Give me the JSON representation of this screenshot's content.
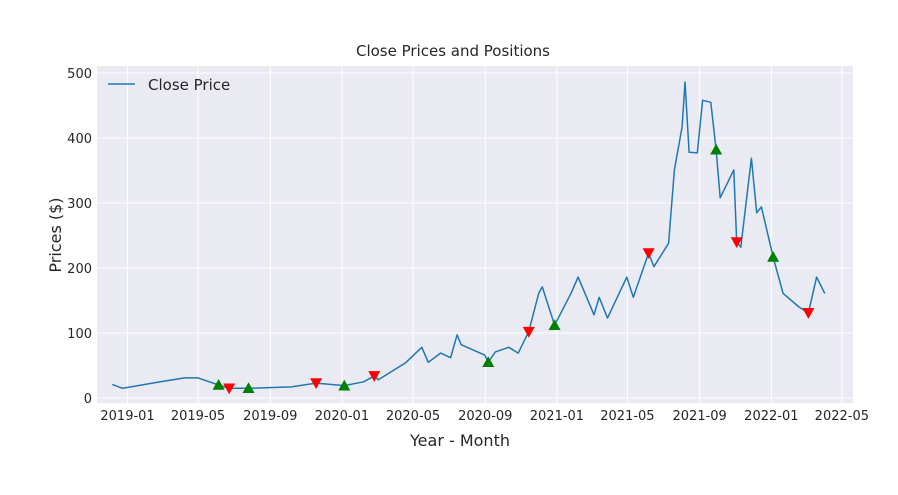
{
  "chart_data": {
    "type": "line",
    "title": "Close Prices and Positions",
    "xlabel": "Year - Month",
    "ylabel": "Prices ($)",
    "ylim": [
      0,
      500
    ],
    "yticks": [
      0,
      100,
      200,
      300,
      400,
      500
    ],
    "xlim": [
      "2018-11-10",
      "2022-05-20"
    ],
    "xticks": [
      "2019-01",
      "2019-05",
      "2019-09",
      "2020-01",
      "2020-05",
      "2020-09",
      "2021-01",
      "2021-05",
      "2021-09",
      "2022-01",
      "2022-05"
    ],
    "grid": true,
    "legend": {
      "placement": "top-left",
      "entries": [
        "Close Price"
      ]
    },
    "colors": {
      "line": "#1f77b4",
      "buy": "#008000",
      "sell": "#ff0000",
      "background": "#eaeaf2",
      "grid": "#ffffff"
    },
    "series": [
      {
        "name": "Close Price",
        "points": [
          [
            "2018-12-06",
            21
          ],
          [
            "2018-12-23",
            15
          ],
          [
            "2019-01-19",
            19
          ],
          [
            "2019-02-26",
            25
          ],
          [
            "2019-04-08",
            31
          ],
          [
            "2019-05-01",
            31
          ],
          [
            "2019-06-05",
            20
          ],
          [
            "2019-06-23",
            15
          ],
          [
            "2019-07-26",
            15
          ],
          [
            "2019-10-07",
            17
          ],
          [
            "2019-11-18",
            23
          ],
          [
            "2020-01-05",
            19
          ],
          [
            "2020-02-07",
            25
          ],
          [
            "2020-02-25",
            34
          ],
          [
            "2020-03-03",
            28
          ],
          [
            "2020-04-18",
            54
          ],
          [
            "2020-05-16",
            78
          ],
          [
            "2020-05-27",
            55
          ],
          [
            "2020-06-17",
            69
          ],
          [
            "2020-07-04",
            62
          ],
          [
            "2020-07-15",
            97
          ],
          [
            "2020-07-22",
            82
          ],
          [
            "2020-08-31",
            66
          ],
          [
            "2020-09-06",
            55
          ],
          [
            "2020-09-18",
            71
          ],
          [
            "2020-10-11",
            78
          ],
          [
            "2020-10-27",
            69
          ],
          [
            "2020-11-14",
            102
          ],
          [
            "2020-12-01",
            161
          ],
          [
            "2020-12-07",
            171
          ],
          [
            "2020-12-28",
            112
          ],
          [
            "2021-01-25",
            161
          ],
          [
            "2021-02-06",
            186
          ],
          [
            "2021-03-05",
            128
          ],
          [
            "2021-03-14",
            155
          ],
          [
            "2021-03-28",
            123
          ],
          [
            "2021-04-30",
            186
          ],
          [
            "2021-05-11",
            155
          ],
          [
            "2021-06-06",
            223
          ],
          [
            "2021-06-15",
            202
          ],
          [
            "2021-07-10",
            238
          ],
          [
            "2021-07-20",
            351
          ],
          [
            "2021-08-02",
            417
          ],
          [
            "2021-08-07",
            486
          ],
          [
            "2021-08-14",
            378
          ],
          [
            "2021-08-28",
            377
          ],
          [
            "2021-09-06",
            458
          ],
          [
            "2021-09-20",
            455
          ],
          [
            "2021-09-29",
            382
          ],
          [
            "2021-10-06",
            308
          ],
          [
            "2021-10-29",
            351
          ],
          [
            "2021-11-03",
            240
          ],
          [
            "2021-11-10",
            232
          ],
          [
            "2021-11-28",
            369
          ],
          [
            "2021-12-07",
            285
          ],
          [
            "2021-12-15",
            294
          ],
          [
            "2022-01-04",
            217
          ],
          [
            "2022-01-21",
            161
          ],
          [
            "2022-02-17",
            140
          ],
          [
            "2022-03-05",
            131
          ],
          [
            "2022-03-19",
            186
          ],
          [
            "2022-04-02",
            161
          ]
        ]
      }
    ],
    "buy_markers": [
      [
        "2019-06-05",
        20
      ],
      [
        "2019-07-26",
        15
      ],
      [
        "2020-01-05",
        19
      ],
      [
        "2020-09-06",
        55
      ],
      [
        "2020-12-28",
        112
      ],
      [
        "2021-09-29",
        382
      ],
      [
        "2022-01-04",
        217
      ]
    ],
    "sell_markers": [
      [
        "2019-06-23",
        15
      ],
      [
        "2019-11-18",
        23
      ],
      [
        "2020-02-25",
        34
      ],
      [
        "2020-11-14",
        102
      ],
      [
        "2021-06-06",
        223
      ],
      [
        "2021-11-03",
        240
      ],
      [
        "2022-03-05",
        131
      ]
    ]
  }
}
